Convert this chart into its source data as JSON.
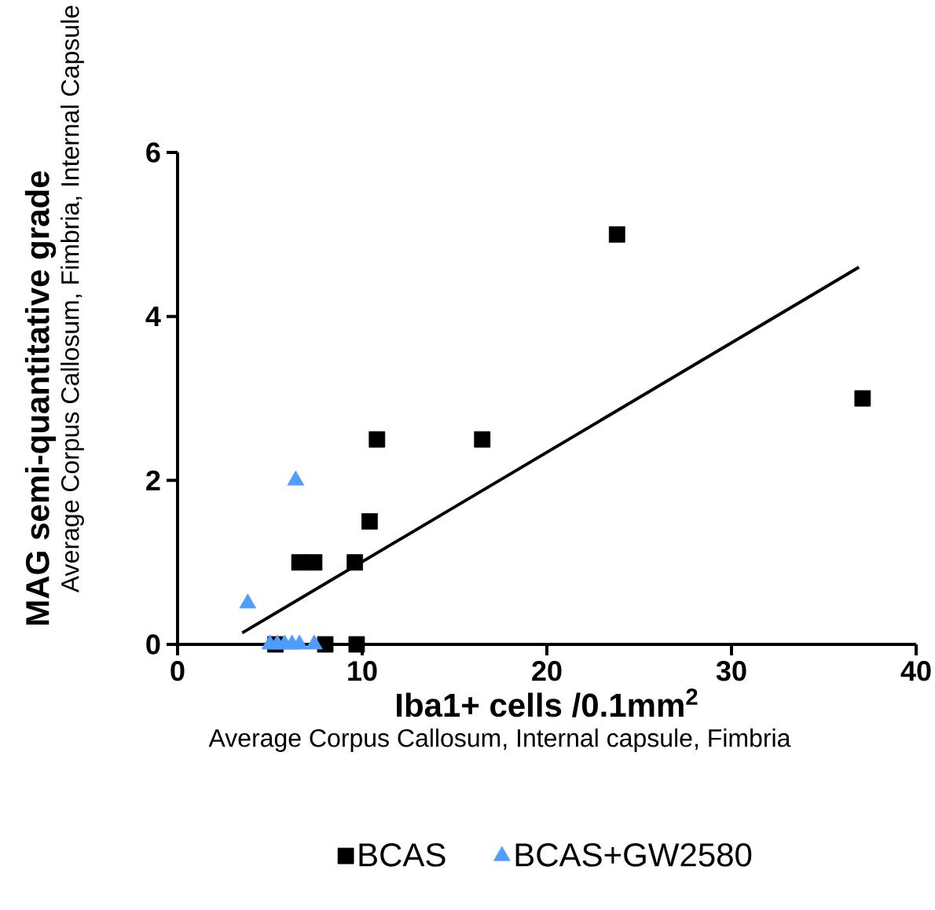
{
  "chart_data": {
    "type": "scatter",
    "xlabel": "**Iba1+ cells /0.1mm$^{2}$**",
    "ylabel": "**MAG semi-quantitative grade**",
    "annotations": [
      "Average Corpus Callosum, Internal capsule, Fimbria",
      "Average Corpus Callosum, Fimbria, Internal Capsule"
    ],
    "xlim": [
      0,
      40
    ],
    "ylim": [
      0,
      6
    ],
    "xticks": [
      0,
      10,
      20,
      30,
      40
    ],
    "yticks": [
      0,
      2,
      4,
      6
    ],
    "legend": "bottom",
    "grid": false,
    "series": [
      {
        "name": "BCAS",
        "color": "#000000",
        "marker": "square",
        "x": [
          23.8,
          37.1,
          10.8,
          16.5,
          10.4,
          6.6,
          7.4,
          9.6,
          8.0,
          9.7,
          5.3
        ],
        "values": [
          5,
          3,
          2.5,
          2.5,
          1.5,
          1,
          1,
          1,
          0,
          0,
          0
        ]
      },
      {
        "name": "BCAS+GW2580",
        "color": "#4f9dff",
        "marker": "triangle",
        "x": [
          3.8,
          6.4,
          5.0,
          5.4,
          5.8,
          6.2,
          6.6,
          7.4
        ],
        "values": [
          0.5,
          2,
          0,
          0,
          0,
          0,
          0,
          0
        ]
      },
      {
        "type": "line",
        "color": "#000000",
        "marker": "none",
        "line_style": "solid",
        "x": [
          3.5,
          36.9
        ],
        "values": [
          0.14,
          4.6
        ]
      }
    ]
  }
}
